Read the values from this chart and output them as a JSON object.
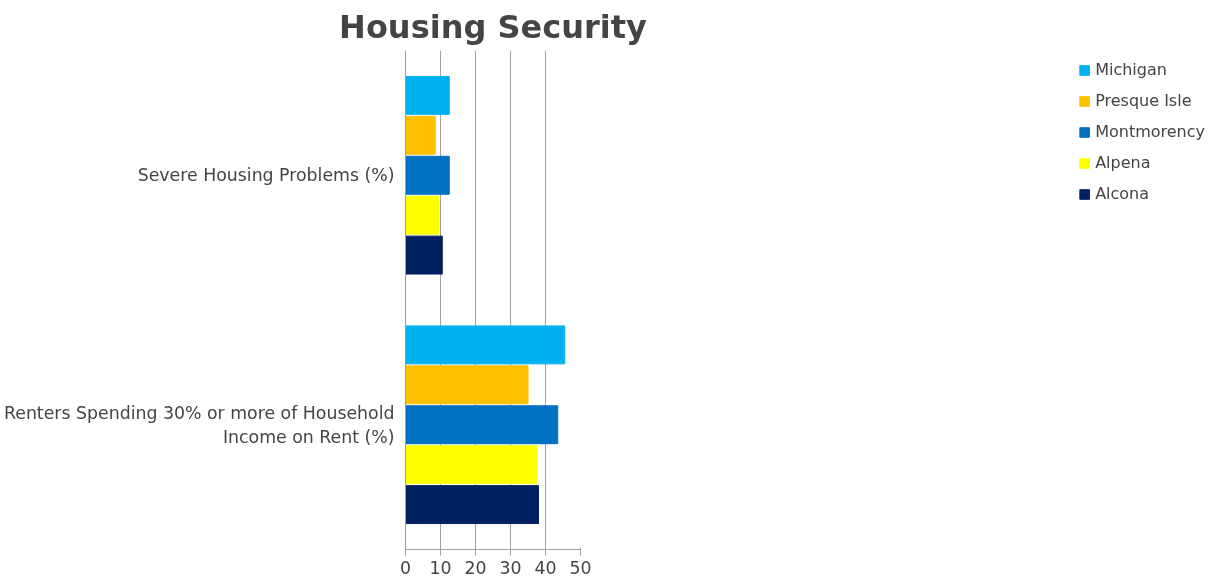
{
  "chart_data": {
    "type": "bar",
    "orientation": "horizontal",
    "title": "Housing Security",
    "categories": [
      "Severe Housing Problems (%)",
      "Renters Spending 30% or more of Household Income on Rent (%)"
    ],
    "series": [
      {
        "name": "Michigan",
        "color": "#00b0f0",
        "values": [
          12.5,
          45.5
        ]
      },
      {
        "name": "Presque Isle",
        "color": "#ffc000",
        "values": [
          8.5,
          35
        ]
      },
      {
        "name": "Montmorency",
        "color": "#0070c0",
        "values": [
          12.5,
          43.5
        ]
      },
      {
        "name": "Alpena",
        "color": "#ffff00",
        "values": [
          9.5,
          37.5
        ]
      },
      {
        "name": "Alcona",
        "color": "#002060",
        "values": [
          10.5,
          38
        ]
      }
    ],
    "xlim": [
      0,
      50
    ],
    "xticks": [
      0,
      10,
      20,
      30,
      40,
      50
    ],
    "grid": "x",
    "legend": "right"
  }
}
